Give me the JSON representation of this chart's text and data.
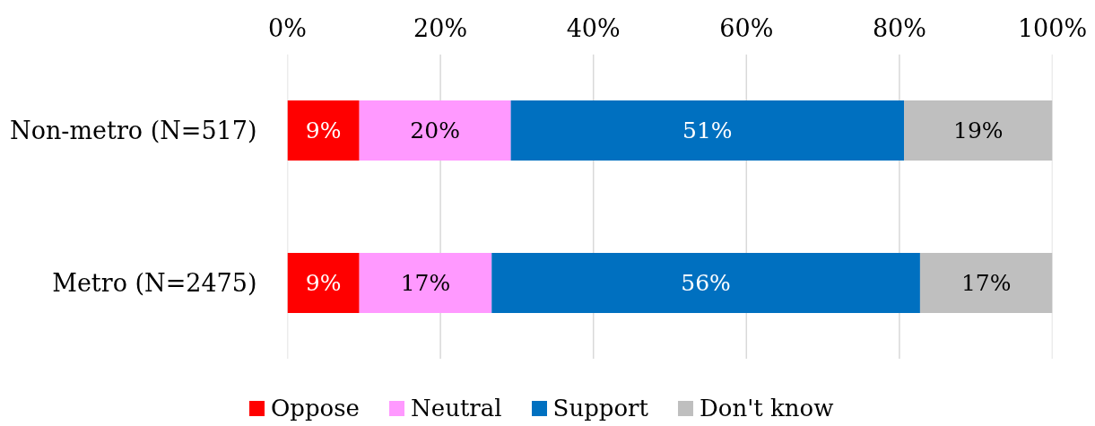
{
  "chart_data": {
    "type": "bar",
    "orientation": "horizontal",
    "stacked": true,
    "categories": [
      "Non-metro (N=517)",
      "Metro (N=2475)"
    ],
    "series": [
      {
        "name": "Oppose",
        "color": "#ff0000",
        "values": [
          9.4,
          9.4
        ],
        "value_labels": [
          "9%",
          "9%"
        ]
      },
      {
        "name": "Neutral",
        "color": "#ff99ff",
        "values": [
          19.8,
          17.3
        ],
        "value_labels": [
          "20%",
          "17%"
        ]
      },
      {
        "name": "Support",
        "color": "#0070c0",
        "values": [
          51.4,
          56.0
        ],
        "value_labels": [
          "51%",
          "56%"
        ]
      },
      {
        "name": "Don't know",
        "color": "#bfbfbf",
        "values": [
          19.4,
          17.3
        ],
        "value_labels": [
          "19%",
          "17%"
        ]
      }
    ],
    "xlim": [
      0,
      100
    ],
    "xticks": [
      {
        "value": 0,
        "label": "0%"
      },
      {
        "value": 20,
        "label": "20%"
      },
      {
        "value": 40,
        "label": "40%"
      },
      {
        "value": 60,
        "label": "60%"
      },
      {
        "value": 80,
        "label": "80%"
      },
      {
        "value": 100,
        "label": "100%"
      }
    ],
    "grid": "x",
    "legend": "bottom"
  }
}
